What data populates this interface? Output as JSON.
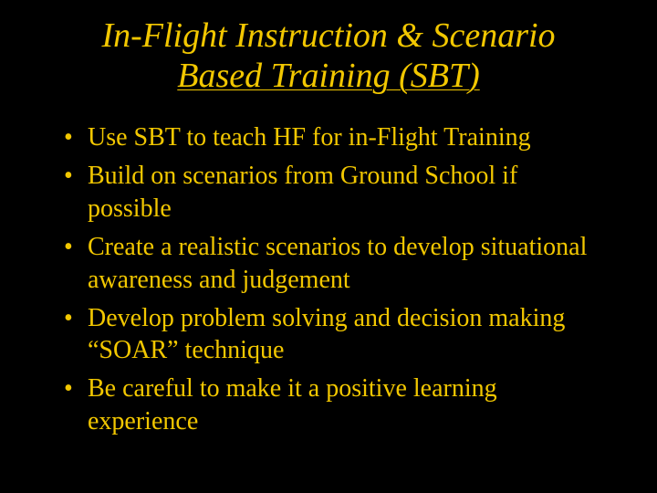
{
  "slide": {
    "background_color": "#000000",
    "text_color": "#f2c700",
    "font_family": "Times New Roman",
    "title": {
      "line1": "In-Flight Instruction & Scenario",
      "line2": "Based Training (SBT)",
      "font_style": "italic",
      "font_size_pt": 38,
      "underline_last_line": true
    },
    "bullets": {
      "font_size_pt": 28,
      "items": [
        "Use SBT to teach HF for in-Flight Training",
        "Build on scenarios from Ground School if possible",
        "Create a realistic scenarios to develop situational awareness and judgement",
        "Develop problem solving and decision making  “SOAR” technique",
        "Be careful to make it a positive learning experience"
      ]
    }
  }
}
